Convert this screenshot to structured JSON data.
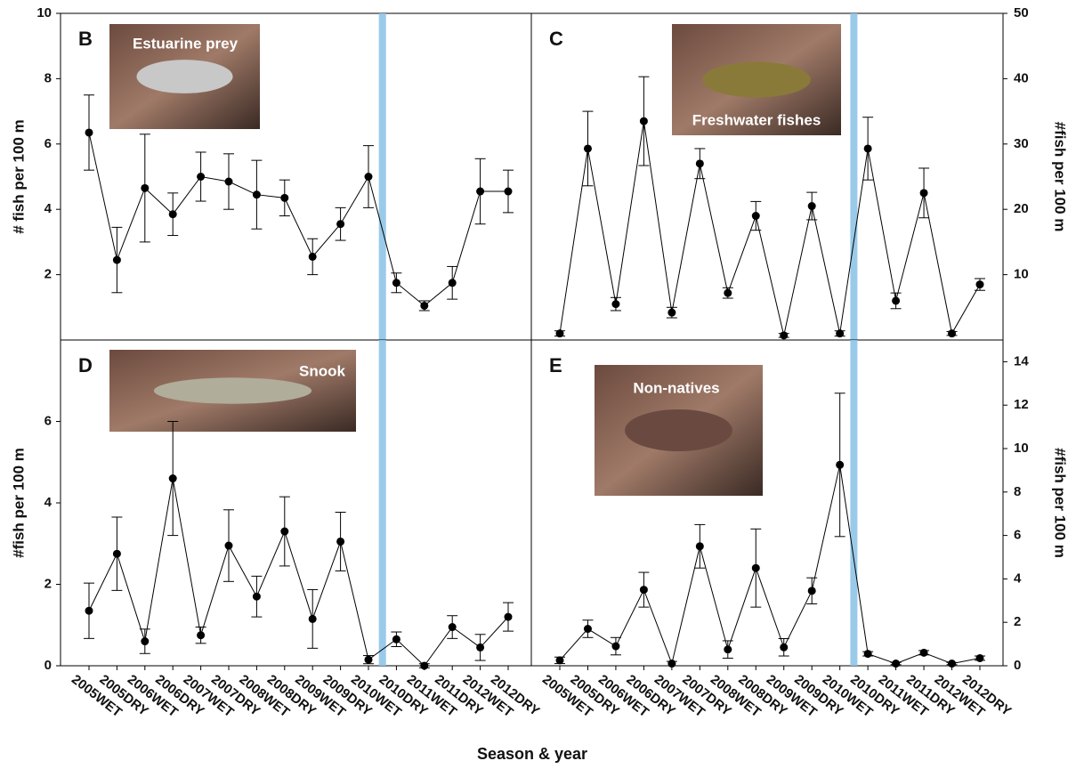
{
  "figure": {
    "xlabel": "Season & year"
  },
  "chart_data": [
    {
      "type": "line",
      "panel": "B",
      "photo_label": "Estuarine prey",
      "ylabel": "# fish per 100 m",
      "ylim": [
        0,
        10
      ],
      "yticks": [
        2,
        4,
        6,
        8,
        10
      ],
      "color": "#000000",
      "values": [
        6.35,
        2.45,
        4.65,
        3.85,
        5.0,
        4.85,
        4.45,
        4.35,
        2.55,
        3.55,
        5.0,
        1.75,
        1.05,
        1.75,
        4.55,
        4.55
      ],
      "errors": [
        1.15,
        1.0,
        1.65,
        0.65,
        0.75,
        0.85,
        1.05,
        0.55,
        0.55,
        0.5,
        0.95,
        0.3,
        0.15,
        0.5,
        1.0,
        0.65
      ]
    },
    {
      "type": "line",
      "panel": "C",
      "photo_label": "Freshwater fishes",
      "ylabel": "#fish per 100 m",
      "ylim": [
        0,
        50
      ],
      "yticks": [
        10,
        20,
        30,
        40,
        50
      ],
      "color": "#000000",
      "values": [
        1.0,
        29.3,
        5.5,
        33.5,
        4.2,
        27.0,
        7.2,
        19.0,
        0.7,
        20.5,
        1.0,
        29.3,
        6.0,
        22.5,
        1.0,
        8.5
      ],
      "errors": [
        0.4,
        5.7,
        1.0,
        6.8,
        0.8,
        2.3,
        0.8,
        2.2,
        0.3,
        2.1,
        0.4,
        4.8,
        1.2,
        3.8,
        0.3,
        0.9
      ]
    },
    {
      "type": "line",
      "panel": "D",
      "photo_label": "Snook",
      "ylabel": "#fish per 100 m",
      "ylim": [
        0,
        8
      ],
      "yticks": [
        0,
        2,
        4,
        6
      ],
      "color": "#000000",
      "categories": [
        "2005WET",
        "2005DRY",
        "2006WET",
        "2006DRY",
        "2007WET",
        "2007DRY",
        "2008WET",
        "2008DRY",
        "2009WET",
        "2009DRY",
        "2010WET",
        "2010DRY",
        "2011WET",
        "2011DRY",
        "2012WET",
        "2012DRY"
      ],
      "values": [
        1.35,
        2.75,
        0.6,
        4.6,
        0.75,
        2.95,
        1.7,
        3.3,
        1.15,
        3.05,
        0.15,
        0.65,
        0.0,
        0.95,
        0.45,
        1.2
      ],
      "errors": [
        0.68,
        0.9,
        0.3,
        1.4,
        0.2,
        0.88,
        0.5,
        0.85,
        0.72,
        0.72,
        0.1,
        0.18,
        0.05,
        0.28,
        0.32,
        0.35
      ]
    },
    {
      "type": "line",
      "panel": "E",
      "photo_label": "Non-natives",
      "ylabel": "#fish per 100 m",
      "ylim": [
        0,
        15
      ],
      "yticks": [
        0,
        2,
        4,
        6,
        8,
        10,
        12,
        14
      ],
      "color": "#000000",
      "categories": [
        "2005WET",
        "2005DRY",
        "2006WET",
        "2006DRY",
        "2007WET",
        "2007DRY",
        "2008WET",
        "2008DRY",
        "2009WET",
        "2009DRY",
        "2010WET",
        "2010DRY",
        "2011WET",
        "2011DRY",
        "2012WET",
        "2012DRY"
      ],
      "values": [
        0.25,
        1.7,
        0.9,
        3.5,
        0.1,
        5.5,
        0.75,
        4.5,
        0.85,
        3.45,
        9.25,
        0.55,
        0.1,
        0.6,
        0.1,
        0.35
      ],
      "errors": [
        0.15,
        0.4,
        0.4,
        0.8,
        0.1,
        1.0,
        0.4,
        1.8,
        0.4,
        0.6,
        3.3,
        0.1,
        0.05,
        0.1,
        0.05,
        0.1
      ]
    }
  ]
}
